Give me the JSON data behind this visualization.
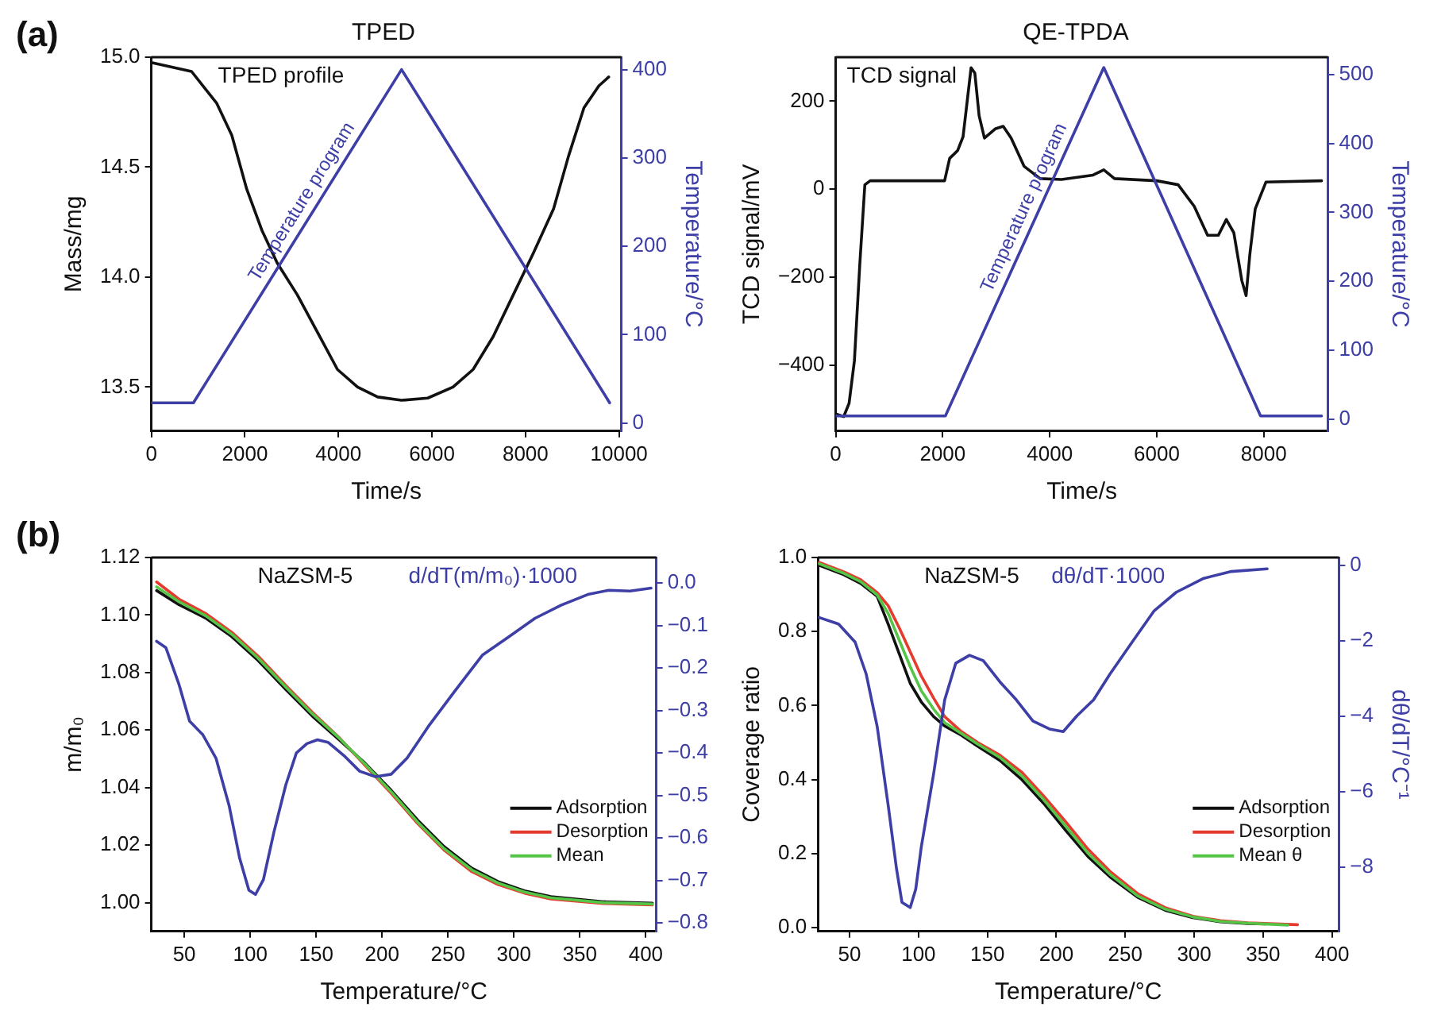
{
  "chart_data": [
    {
      "type": "line",
      "title": "TPED",
      "xlabel": "Time/s",
      "ylabel": "Mass/mg",
      "y2label": "Temperature/°C",
      "xlim": [
        0,
        10050
      ],
      "xticks": [
        0,
        2000,
        4000,
        6000,
        8000,
        10000
      ],
      "ylim": [
        13.3,
        15.0
      ],
      "yticks": [
        {
          "value": 13.5,
          "label": "13.5"
        },
        {
          "value": 14,
          "label": "14.0"
        },
        {
          "value": 14.5,
          "label": "14.5"
        },
        {
          "value": 15,
          "label": "15.0"
        }
      ],
      "y2lim": [
        -9,
        414
      ],
      "y2ticks": [
        0,
        100,
        200,
        300,
        400
      ],
      "grid": false,
      "marker": "none",
      "line_style": "solid",
      "annotations": [
        "(a)"
      ],
      "series": [
        {
          "name": "TPED profile",
          "color": "#111111",
          "x": [
            0,
            860,
            1400,
            1720,
            2040,
            2370,
            2690,
            3120,
            3550,
            3980,
            4410,
            4840,
            5350,
            5910,
            6450,
            6880,
            7310,
            7740,
            8170,
            8600,
            8920,
            9250,
            9570,
            9780
          ],
          "values": [
            14.976,
            14.935,
            14.79,
            14.645,
            14.4,
            14.21,
            14.065,
            13.92,
            13.75,
            13.58,
            13.5,
            13.455,
            13.44,
            13.45,
            13.5,
            13.58,
            13.73,
            13.92,
            14.11,
            14.31,
            14.55,
            14.77,
            14.87,
            14.91
          ]
        },
        {
          "name": "Temperature program",
          "color": "#3d3fa6",
          "axis": "y2",
          "x": [
            0,
            900,
            5350,
            9800
          ],
          "values": [
            23,
            23,
            400,
            23
          ]
        }
      ]
    },
    {
      "type": "line",
      "title": "QE-TPDA",
      "xlabel": "Time/s",
      "ylabel": "TCD signal/mV",
      "y2label": "Temperature/°C",
      "xlim": [
        0,
        9200
      ],
      "xticks": [
        0,
        2000,
        4000,
        6000,
        8000
      ],
      "ylim": [
        -550,
        300
      ],
      "yticks": [
        {
          "value": -400,
          "label": "−400"
        },
        {
          "value": -200,
          "label": "−200"
        },
        0,
        200
      ],
      "y2lim": [
        -17,
        525
      ],
      "y2ticks": [
        0,
        100,
        200,
        300,
        400,
        500
      ],
      "grid": false,
      "marker": "none",
      "line_style": "solid",
      "series": [
        {
          "name": "TCD signal",
          "color": "#111111",
          "x": [
            0,
            150,
            250,
            350,
            450,
            545,
            645,
            2035,
            2130,
            2280,
            2380,
            2450,
            2530,
            2600,
            2680,
            2780,
            2980,
            3130,
            3280,
            3520,
            3820,
            4220,
            4810,
            5010,
            5210,
            6000,
            6400,
            6700,
            6950,
            7150,
            7300,
            7440,
            7590,
            7670,
            7740,
            7840,
            8040,
            9080
          ],
          "values": [
            -511,
            -517,
            -487,
            -390,
            -172,
            10,
            19,
            19,
            70,
            88,
            119,
            192,
            276,
            264,
            167,
            116,
            137,
            143,
            116,
            52,
            24,
            22,
            32,
            44,
            24,
            19,
            10,
            -39,
            -105,
            -105,
            -69,
            -99,
            -208,
            -242,
            -148,
            -45,
            16,
            19
          ]
        },
        {
          "name": "Temperature program",
          "color": "#3d3fa6",
          "axis": "y2",
          "x": [
            0,
            2050,
            5010,
            7940,
            9080
          ],
          "values": [
            5,
            5,
            510,
            5,
            5
          ]
        }
      ]
    },
    {
      "type": "line",
      "xlabel": "Temperature/°C",
      "ylabel": "m/m₀",
      "xlim": [
        25,
        408
      ],
      "xticks": [
        50,
        100,
        150,
        200,
        250,
        300,
        350,
        400
      ],
      "ylim": [
        0.99,
        1.12
      ],
      "yticks": [
        {
          "value": 1,
          "label": "1.00"
        },
        1.02,
        1.04,
        1.06,
        1.08,
        {
          "value": 1.1,
          "label": "1.10"
        },
        1.12
      ],
      "y2lim": [
        -0.82,
        0.06
      ],
      "y2ticks": [
        {
          "value": -0.8,
          "label": "−0.8"
        },
        {
          "value": -0.7,
          "label": "−0.7"
        },
        {
          "value": -0.6,
          "label": "−0.6"
        },
        {
          "value": -0.5,
          "label": "−0.5"
        },
        {
          "value": -0.4,
          "label": "−0.4"
        },
        {
          "value": -0.3,
          "label": "−0.3"
        },
        {
          "value": -0.2,
          "label": "−0.2"
        },
        {
          "value": -0.1,
          "label": "−0.1"
        },
        {
          "value": 0,
          "label": "0.0"
        }
      ],
      "grid": false,
      "marker": "none",
      "line_style": "solid",
      "legend": "bottom right",
      "annotations": [
        "(b)",
        "NaZSM-5"
      ],
      "series": [
        {
          "name": "Adsorption",
          "color": "#111111",
          "x": [
            29,
            46,
            66,
            86,
            106,
            127,
            147,
            167,
            187,
            207,
            227,
            247,
            268,
            288,
            308,
            328,
            368,
            405
          ],
          "values": [
            1.1085,
            1.1036,
            1.099,
            1.0925,
            1.0842,
            1.0741,
            1.0649,
            1.0568,
            1.0485,
            1.039,
            1.0287,
            1.0195,
            1.012,
            1.0073,
            1.0041,
            1.0021,
            1.0003,
            0.9998
          ]
        },
        {
          "name": "Desorption",
          "color": "#e53b2f",
          "x": [
            29,
            46,
            66,
            86,
            106,
            127,
            147,
            167,
            187,
            207,
            227,
            247,
            268,
            288,
            308,
            328,
            368,
            405
          ],
          "values": [
            1.1115,
            1.1055,
            1.1006,
            1.094,
            1.0857,
            1.0755,
            1.0662,
            1.0576,
            1.0478,
            1.038,
            1.0275,
            1.0183,
            1.0108,
            1.0063,
            1.0033,
            1.0013,
            0.9997,
            0.9992
          ]
        },
        {
          "name": "Mean",
          "color": "#55c548",
          "x": [
            29,
            46,
            66,
            86,
            106,
            127,
            147,
            167,
            187,
            207,
            227,
            247,
            268,
            288,
            308,
            328,
            368,
            405
          ],
          "values": [
            1.1098,
            1.1046,
            1.0998,
            1.0933,
            1.085,
            1.0749,
            1.0657,
            1.0574,
            1.0482,
            1.0385,
            1.028,
            1.0188,
            1.0114,
            1.0068,
            1.0037,
            1.0017,
            1.0,
            0.9995
          ]
        },
        {
          "name": "d/dT(m/m₀)·1000",
          "color": "#3d3fa6",
          "axis": "y2",
          "x": [
            29,
            36,
            46,
            54,
            64,
            74,
            84,
            92,
            99,
            104,
            110,
            118,
            127,
            135,
            143,
            151,
            159,
            171,
            183,
            195,
            207,
            219,
            235,
            256,
            276,
            296,
            316,
            336,
            356,
            372,
            388,
            404
          ],
          "values": [
            -0.137,
            -0.152,
            -0.239,
            -0.325,
            -0.357,
            -0.412,
            -0.524,
            -0.648,
            -0.723,
            -0.733,
            -0.698,
            -0.586,
            -0.475,
            -0.4,
            -0.378,
            -0.369,
            -0.375,
            -0.406,
            -0.443,
            -0.456,
            -0.45,
            -0.412,
            -0.338,
            -0.251,
            -0.17,
            -0.127,
            -0.083,
            -0.052,
            -0.027,
            -0.017,
            -0.019,
            -0.012
          ]
        }
      ]
    },
    {
      "type": "line",
      "xlabel": "Temperature/°C",
      "ylabel": "Coverage ratio",
      "y2label": "dθ/dT/°C⁻¹",
      "xlim": [
        27,
        405
      ],
      "xticks": [
        50,
        100,
        150,
        200,
        250,
        300,
        350,
        400
      ],
      "ylim": [
        -0.01,
        1.0
      ],
      "yticks": [
        {
          "value": 0,
          "label": "0.0"
        },
        0.2,
        0.4,
        0.6,
        0.8,
        {
          "value": 1,
          "label": "1.0"
        }
      ],
      "y2lim": [
        -9.7,
        0.2
      ],
      "y2ticks": [
        {
          "value": -8,
          "label": "−8"
        },
        {
          "value": -6,
          "label": "−6"
        },
        {
          "value": -4,
          "label": "−4"
        },
        {
          "value": -2,
          "label": "−2"
        },
        0
      ],
      "grid": false,
      "marker": "none",
      "line_style": "solid",
      "legend": "bottom right",
      "annotations": [
        "NaZSM-5"
      ],
      "series": [
        {
          "name": "Adsorption",
          "color": "#111111",
          "x": [
            28,
            46,
            58,
            70,
            78,
            86,
            94,
            102,
            111,
            119,
            131,
            143,
            159,
            175,
            191,
            207,
            223,
            239,
            259,
            279,
            299,
            319,
            339,
            352
          ],
          "values": [
            0.979,
            0.953,
            0.93,
            0.895,
            0.82,
            0.74,
            0.66,
            0.61,
            0.57,
            0.545,
            0.52,
            0.49,
            0.452,
            0.4,
            0.335,
            0.262,
            0.192,
            0.137,
            0.082,
            0.047,
            0.027,
            0.016,
            0.011,
            0.01
          ]
        },
        {
          "name": "Desorption",
          "color": "#e53b2f",
          "x": [
            28,
            46,
            58,
            70,
            78,
            86,
            94,
            102,
            111,
            119,
            131,
            143,
            159,
            175,
            191,
            207,
            223,
            239,
            259,
            279,
            299,
            319,
            339,
            375
          ],
          "values": [
            0.987,
            0.961,
            0.94,
            0.905,
            0.87,
            0.81,
            0.745,
            0.68,
            0.62,
            0.57,
            0.53,
            0.5,
            0.466,
            0.42,
            0.355,
            0.285,
            0.212,
            0.152,
            0.092,
            0.054,
            0.031,
            0.019,
            0.013,
            0.008
          ]
        },
        {
          "name": "Mean θ",
          "color": "#55c548",
          "x": [
            28,
            46,
            58,
            70,
            78,
            86,
            94,
            102,
            111,
            119,
            131,
            143,
            159,
            175,
            191,
            207,
            223,
            239,
            259,
            279,
            299,
            319,
            339,
            368
          ],
          "values": [
            0.983,
            0.957,
            0.935,
            0.899,
            0.849,
            0.777,
            0.705,
            0.64,
            0.59,
            0.554,
            0.525,
            0.496,
            0.46,
            0.41,
            0.345,
            0.273,
            0.201,
            0.144,
            0.086,
            0.05,
            0.029,
            0.017,
            0.012,
            0.007
          ]
        },
        {
          "name": "dθ/dT·1000",
          "color": "#3d3fa6",
          "axis": "y2",
          "x": [
            28,
            42,
            54,
            62,
            70,
            78,
            84,
            88,
            94,
            98,
            102,
            111,
            119,
            127,
            137,
            147,
            159,
            171,
            183,
            195,
            205,
            215,
            227,
            239,
            255,
            271,
            287,
            307,
            327,
            353
          ],
          "values": [
            -1.39,
            -1.56,
            -2.04,
            -2.88,
            -4.27,
            -6.36,
            -8.03,
            -8.93,
            -9.07,
            -8.58,
            -7.47,
            -5.52,
            -3.57,
            -2.6,
            -2.39,
            -2.53,
            -3.09,
            -3.57,
            -4.13,
            -4.34,
            -4.41,
            -3.99,
            -3.57,
            -2.88,
            -2.04,
            -1.21,
            -0.72,
            -0.35,
            -0.17,
            -0.1
          ]
        }
      ]
    }
  ]
}
